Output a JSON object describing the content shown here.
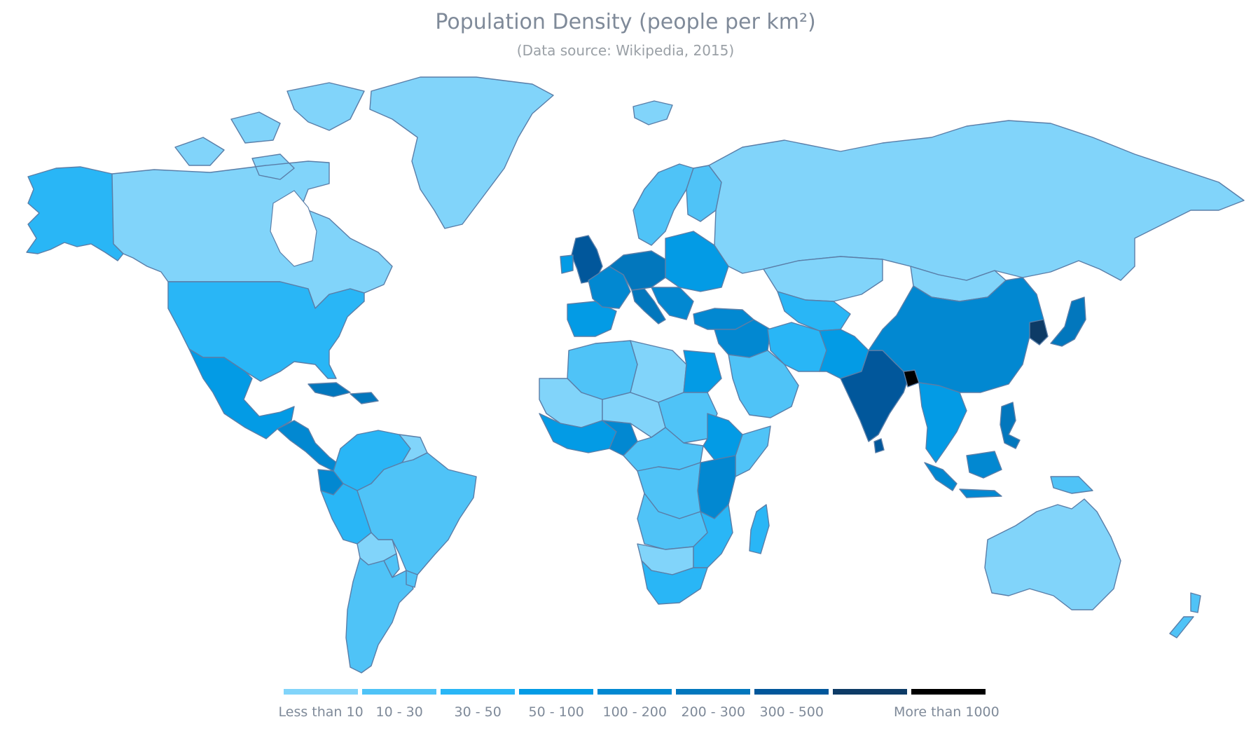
{
  "title": "Population Density (people per km²)",
  "subtitle": "(Data source: Wikipedia, 2015)",
  "legend": {
    "items": [
      {
        "label": "Less than 10",
        "color": "#81d4fa"
      },
      {
        "label": "10 - 30",
        "color": "#4fc3f7"
      },
      {
        "label": "30 - 50",
        "color": "#29b6f6"
      },
      {
        "label": "50 - 100",
        "color": "#039be5"
      },
      {
        "label": "100 - 200",
        "color": "#0288d1"
      },
      {
        "label": "200 - 300",
        "color": "#0277bd"
      },
      {
        "label": "300 - 500",
        "color": "#01579b"
      },
      {
        "label": "",
        "color": "#0d3b66"
      },
      {
        "label": "More than 1000",
        "color": "#000000"
      }
    ]
  },
  "regions": [
    {
      "name": "alaska",
      "band": 2
    },
    {
      "name": "canada",
      "band": 0
    },
    {
      "name": "greenland",
      "band": 0
    },
    {
      "name": "usa",
      "band": 2
    },
    {
      "name": "mexico",
      "band": 3
    },
    {
      "name": "central-america",
      "band": 4
    },
    {
      "name": "caribbean",
      "band": 5
    },
    {
      "name": "colombia-venezuela",
      "band": 2
    },
    {
      "name": "guianas",
      "band": 0
    },
    {
      "name": "ecuador",
      "band": 4
    },
    {
      "name": "peru",
      "band": 2
    },
    {
      "name": "brazil",
      "band": 1
    },
    {
      "name": "bolivia",
      "band": 0
    },
    {
      "name": "paraguay",
      "band": 1
    },
    {
      "name": "chile-argentina",
      "band": 1
    },
    {
      "name": "uruguay",
      "band": 1
    },
    {
      "name": "iceland",
      "band": 0
    },
    {
      "name": "scandinavia",
      "band": 1
    },
    {
      "name": "finland",
      "band": 1
    },
    {
      "name": "uk",
      "band": 6
    },
    {
      "name": "ireland",
      "band": 3
    },
    {
      "name": "iberia",
      "band": 3
    },
    {
      "name": "france",
      "band": 4
    },
    {
      "name": "central-europe",
      "band": 5
    },
    {
      "name": "eastern-europe",
      "band": 3
    },
    {
      "name": "italy",
      "band": 5
    },
    {
      "name": "balkans",
      "band": 4
    },
    {
      "name": "russia",
      "band": 0
    },
    {
      "name": "kazakhstan",
      "band": 0
    },
    {
      "name": "mongolia",
      "band": 0
    },
    {
      "name": "central-asia",
      "band": 2
    },
    {
      "name": "turkey",
      "band": 4
    },
    {
      "name": "middle-east",
      "band": 4
    },
    {
      "name": "saudi-arabia",
      "band": 1
    },
    {
      "name": "iran",
      "band": 2
    },
    {
      "name": "afghanistan-pakistan",
      "band": 3
    },
    {
      "name": "india",
      "band": 6
    },
    {
      "name": "bangladesh",
      "band": 8
    },
    {
      "name": "sri-lanka",
      "band": 6
    },
    {
      "name": "china",
      "band": 4
    },
    {
      "name": "korea",
      "band": 7
    },
    {
      "name": "japan",
      "band": 5
    },
    {
      "name": "southeast-asia",
      "band": 3
    },
    {
      "name": "philippines",
      "band": 5
    },
    {
      "name": "indonesia",
      "band": 4
    },
    {
      "name": "papua",
      "band": 1
    },
    {
      "name": "australia",
      "band": 0
    },
    {
      "name": "new-zealand",
      "band": 1
    },
    {
      "name": "north-africa",
      "band": 1
    },
    {
      "name": "libya",
      "band": 0
    },
    {
      "name": "egypt",
      "band": 3
    },
    {
      "name": "mauritania-mali",
      "band": 0
    },
    {
      "name": "west-africa",
      "band": 3
    },
    {
      "name": "nigeria",
      "band": 4
    },
    {
      "name": "chad-niger",
      "band": 0
    },
    {
      "name": "sudan",
      "band": 1
    },
    {
      "name": "ethiopia",
      "band": 3
    },
    {
      "name": "somalia",
      "band": 1
    },
    {
      "name": "central-africa",
      "band": 1
    },
    {
      "name": "east-africa",
      "band": 4
    },
    {
      "name": "congo",
      "band": 1
    },
    {
      "name": "angola-zambia",
      "band": 1
    },
    {
      "name": "namibia-botswana",
      "band": 0
    },
    {
      "name": "south-africa",
      "band": 2
    },
    {
      "name": "mozambique",
      "band": 2
    },
    {
      "name": "madagascar",
      "band": 2
    }
  ]
}
